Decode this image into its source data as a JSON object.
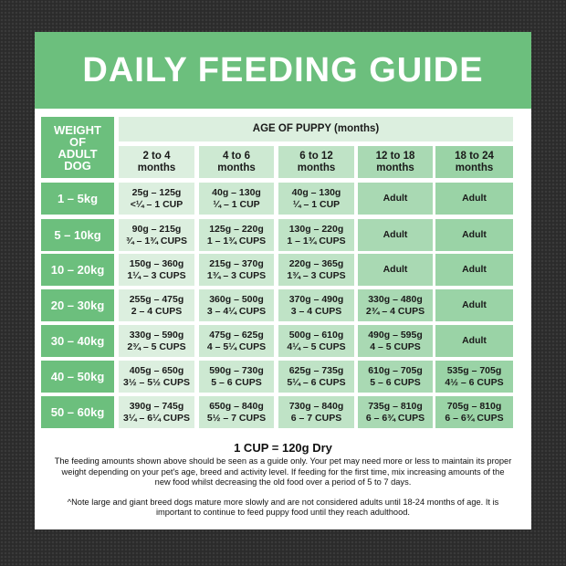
{
  "title": "DAILY FEEDING GUIDE",
  "table": {
    "corner_header": "WEIGHT OF ADULT DOG",
    "age_header": "AGE OF PUPPY (months)",
    "columns": [
      [
        "2 to 4",
        "months"
      ],
      [
        "4 to 6",
        "months"
      ],
      [
        "6 to 12",
        "months"
      ],
      [
        "12 to 18",
        "months"
      ],
      [
        "18 to 24",
        "months"
      ]
    ],
    "rows": [
      {
        "weight": "1 – 5kg",
        "cells": [
          [
            "25g – 125g",
            "<¼ – 1 CUP"
          ],
          [
            "40g – 130g",
            "¼ – 1 CUP"
          ],
          [
            "40g – 130g",
            "¼ – 1 CUP"
          ],
          [
            "Adult"
          ],
          [
            "Adult"
          ]
        ]
      },
      {
        "weight": "5 – 10kg",
        "cells": [
          [
            "90g – 215g",
            "¾ – 1¾ CUPS"
          ],
          [
            "125g – 220g",
            "1 – 1¾ CUPS"
          ],
          [
            "130g – 220g",
            "1 – 1¾ CUPS"
          ],
          [
            "Adult"
          ],
          [
            "Adult"
          ]
        ]
      },
      {
        "weight": "10 – 20kg",
        "cells": [
          [
            "150g – 360g",
            "1¼ – 3 CUPS"
          ],
          [
            "215g – 370g",
            "1¾ – 3 CUPS"
          ],
          [
            "220g – 365g",
            "1¾ – 3 CUPS"
          ],
          [
            "Adult"
          ],
          [
            "Adult"
          ]
        ]
      },
      {
        "weight": "20 – 30kg",
        "cells": [
          [
            "255g – 475g",
            "2 – 4 CUPS"
          ],
          [
            "360g – 500g",
            "3 – 4¼ CUPS"
          ],
          [
            "370g – 490g",
            "3 – 4 CUPS"
          ],
          [
            "330g – 480g",
            "2¾ – 4 CUPS"
          ],
          [
            "Adult"
          ]
        ]
      },
      {
        "weight": "30 – 40kg",
        "cells": [
          [
            "330g – 590g",
            "2¾ – 5 CUPS"
          ],
          [
            "475g – 625g",
            "4 – 5¼ CUPS"
          ],
          [
            "500g – 610g",
            "4¼ – 5 CUPS"
          ],
          [
            "490g – 595g",
            "4 – 5 CUPS"
          ],
          [
            "Adult"
          ]
        ]
      },
      {
        "weight": "40 – 50kg",
        "cells": [
          [
            "405g – 650g",
            "3½ – 5½ CUPS"
          ],
          [
            "590g – 730g",
            "5 – 6 CUPS"
          ],
          [
            "625g – 735g",
            "5¼ – 6 CUPS"
          ],
          [
            "610g – 705g",
            "5 – 6 CUPS"
          ],
          [
            "535g – 705g",
            "4½ – 6 CUPS"
          ]
        ]
      },
      {
        "weight": "50 – 60kg",
        "cells": [
          [
            "390g – 745g",
            "3¼ – 6¼ CUPS"
          ],
          [
            "650g – 840g",
            "5½ – 7 CUPS"
          ],
          [
            "730g – 840g",
            "6 – 7 CUPS"
          ],
          [
            "735g – 810g",
            "6 – 6¾ CUPS"
          ],
          [
            "705g – 810g",
            "6 – 6¾ CUPS"
          ]
        ]
      }
    ]
  },
  "footer": {
    "cup": "1 CUP = 120g Dry",
    "guide": "The feeding amounts shown above should be seen as a guide only. Your pet may need more or less to maintain its proper weight depending on your pet's age, breed and activity level. If feeding for the first time, mix increasing amounts of the new food whilst decreasing the old food over a period of 5 to 7 days.",
    "note": "^Note large and giant breed dogs mature more slowly and are not considered adults until 18-24 months of age. It is important to continue to feed puppy food until they reach adulthood."
  },
  "colors": {
    "green": "#6cbf7d",
    "cols": [
      "#dcefdf",
      "#cde9d2",
      "#bfe3c6",
      "#a9d9b3",
      "#9ad3a6"
    ],
    "age_header": "#dcefdf"
  }
}
